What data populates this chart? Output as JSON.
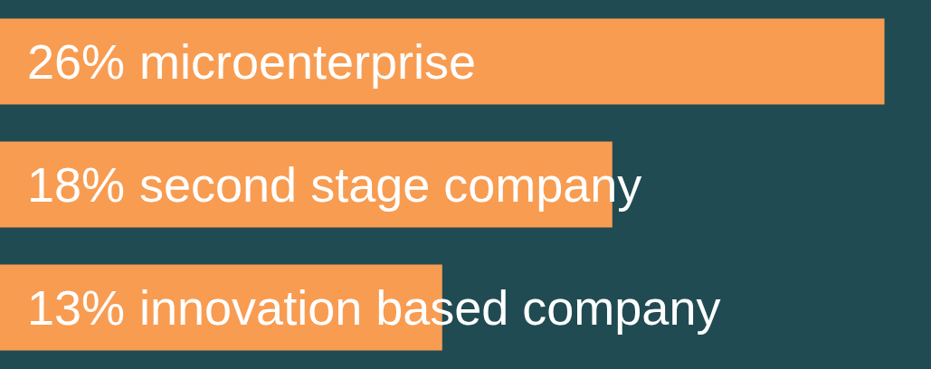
{
  "chart_data": {
    "type": "bar",
    "orientation": "horizontal",
    "categories": [
      "microenterprise",
      "second stage company",
      "innovation based company"
    ],
    "values": [
      26,
      18,
      13
    ],
    "value_labels": [
      "26%",
      "18%",
      "13%"
    ],
    "color": "#f89c52",
    "tick_labels": false,
    "legend": false
  }
}
